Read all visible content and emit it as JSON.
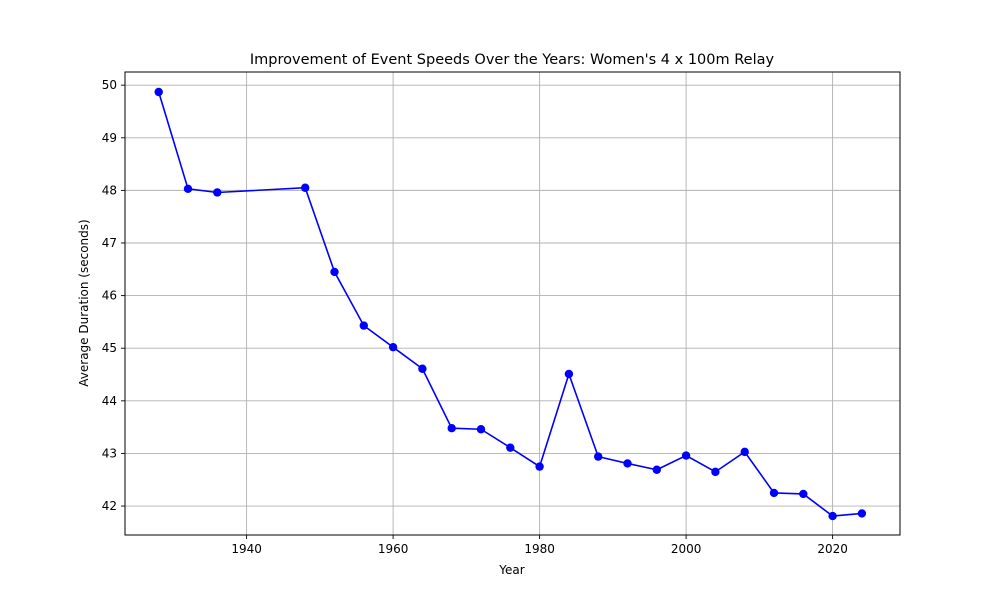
{
  "chart_data": {
    "type": "line",
    "title": "Improvement of Event Speeds Over the Years: Women's 4 x 100m Relay",
    "xlabel": "Year",
    "ylabel": "Average Duration (seconds)",
    "xlim": [
      1923.4,
      2029.2
    ],
    "ylim": [
      41.45,
      50.25
    ],
    "xticks": [
      1940,
      1960,
      1980,
      2000,
      2020
    ],
    "yticks": [
      42,
      43,
      44,
      45,
      46,
      47,
      48,
      49,
      50
    ],
    "grid": true,
    "series": [
      {
        "color": "#0000ff",
        "marker": "circle",
        "x": [
          1928,
          1932,
          1936,
          1948,
          1952,
          1956,
          1960,
          1964,
          1968,
          1972,
          1976,
          1980,
          1984,
          1988,
          1992,
          1996,
          2000,
          2004,
          2008,
          2012,
          2016,
          2020,
          2024
        ],
        "values": [
          49.87,
          48.03,
          47.96,
          48.05,
          46.45,
          45.43,
          45.02,
          44.61,
          43.48,
          43.46,
          43.11,
          42.75,
          44.51,
          42.94,
          42.81,
          42.69,
          42.96,
          42.65,
          43.03,
          42.25,
          42.23,
          41.81,
          41.86
        ]
      }
    ]
  }
}
